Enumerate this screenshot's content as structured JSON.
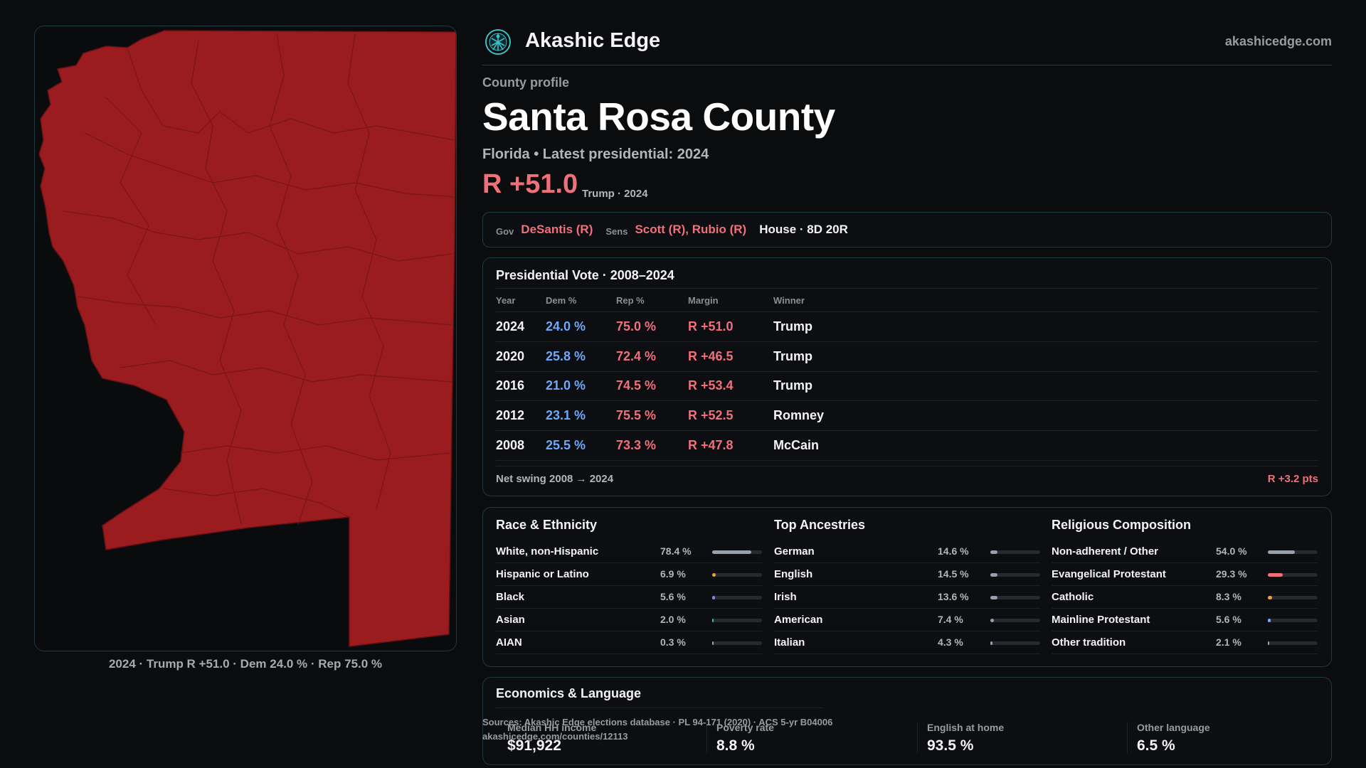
{
  "brand": {
    "name": "Akashic Edge",
    "url": "akashicedge.com"
  },
  "county": {
    "eyebrow": "County profile",
    "name": "Santa Rosa County",
    "subtitle": "Florida • Latest presidential: 2024",
    "margin": "R +51.0",
    "margin_note": "Trump · 2024"
  },
  "officials": {
    "gov_label": "Gov",
    "gov": "DeSantis (R)",
    "sens_label": "Sens",
    "sens": "Scott (R), Rubio (R)",
    "house": "House · 8D 20R"
  },
  "presidential": {
    "title": "Presidential Vote · 2008–2024",
    "headers": {
      "year": "Year",
      "dem": "Dem %",
      "rep": "Rep %",
      "margin": "Margin",
      "winner": "Winner"
    },
    "rows": [
      {
        "year": "2024",
        "dem": "24.0 %",
        "rep": "75.0 %",
        "margin": "R +51.0",
        "winner": "Trump"
      },
      {
        "year": "2020",
        "dem": "25.8 %",
        "rep": "72.4 %",
        "margin": "R +46.5",
        "winner": "Trump"
      },
      {
        "year": "2016",
        "dem": "21.0 %",
        "rep": "74.5 %",
        "margin": "R +53.4",
        "winner": "Trump"
      },
      {
        "year": "2012",
        "dem": "23.1 %",
        "rep": "75.5 %",
        "margin": "R +52.5",
        "winner": "Romney"
      },
      {
        "year": "2008",
        "dem": "25.5 %",
        "rep": "73.3 %",
        "margin": "R +47.8",
        "winner": "McCain"
      }
    ],
    "swing_label": "Net swing 2008 → 2024",
    "swing_value": "R +3.2 pts"
  },
  "race": {
    "title": "Race & Ethnicity",
    "rows": [
      {
        "label": "White, non-Hispanic",
        "value": "78.4 %",
        "share": 0.784,
        "color": "#9aa0ab"
      },
      {
        "label": "Hispanic or Latino",
        "value": "6.9 %",
        "share": 0.069,
        "color": "#e8a33b"
      },
      {
        "label": "Black",
        "value": "5.6 %",
        "share": 0.056,
        "color": "#8a7ee8"
      },
      {
        "label": "Asian",
        "value": "2.0 %",
        "share": 0.02,
        "color": "#3fb6a8"
      },
      {
        "label": "AIAN",
        "value": "0.3 %",
        "share": 0.003,
        "color": "#9aa0ab"
      }
    ]
  },
  "ancestry": {
    "title": "Top Ancestries",
    "rows": [
      {
        "label": "German",
        "value": "14.6 %",
        "share": 0.146,
        "color": "#9aa0ab"
      },
      {
        "label": "English",
        "value": "14.5 %",
        "share": 0.145,
        "color": "#9aa0ab"
      },
      {
        "label": "Irish",
        "value": "13.6 %",
        "share": 0.136,
        "color": "#9aa0ab"
      },
      {
        "label": "American",
        "value": "7.4 %",
        "share": 0.074,
        "color": "#9aa0ab"
      },
      {
        "label": "Italian",
        "value": "4.3 %",
        "share": 0.043,
        "color": "#9aa0ab"
      }
    ]
  },
  "religion": {
    "title": "Religious Composition",
    "rows": [
      {
        "label": "Non-adherent / Other",
        "value": "54.0 %",
        "share": 0.54,
        "color": "#9aa0ab"
      },
      {
        "label": "Evangelical Protestant",
        "value": "29.3 %",
        "share": 0.293,
        "color": "#f0707a"
      },
      {
        "label": "Catholic",
        "value": "8.3 %",
        "share": 0.083,
        "color": "#e8a33b"
      },
      {
        "label": "Mainline Protestant",
        "value": "5.6 %",
        "share": 0.056,
        "color": "#6ea8f7"
      },
      {
        "label": "Other tradition",
        "value": "2.1 %",
        "share": 0.021,
        "color": "#9aa0ab"
      }
    ]
  },
  "economics": {
    "title": "Economics & Language",
    "cells": [
      {
        "label": "Median HH income",
        "value": "$91,922"
      },
      {
        "label": "Poverty rate",
        "value": "8.8 %"
      },
      {
        "label": "English at home",
        "value": "93.5 %"
      },
      {
        "label": "Other language",
        "value": "6.5 %"
      }
    ]
  },
  "sources": {
    "line1": "Sources: Akashic Edge elections database · PL 94-171 (2020) · ACS 5-yr B04006",
    "line2": "akashicedge.com/counties/12113"
  },
  "map": {
    "caption": "2024 · Trump R +51.0 · Dem 24.0 % · Rep 75.0 %",
    "fill_color": "#9a1c1f",
    "line_color": "#7a1518"
  }
}
